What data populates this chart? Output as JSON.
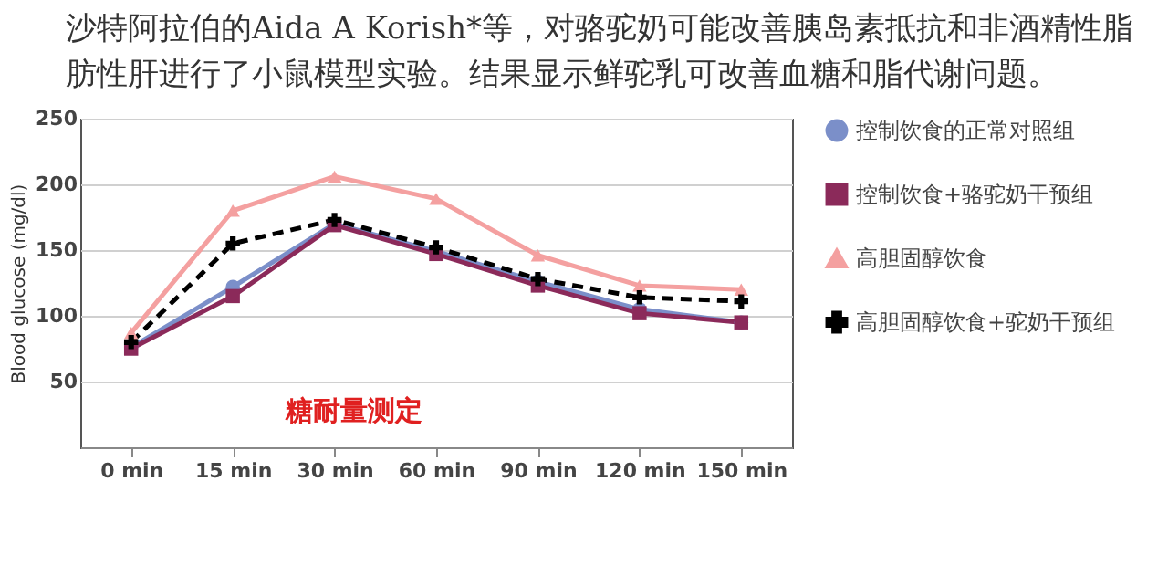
{
  "chart_data": {
    "type": "line",
    "title": "沙特阿拉伯的Aida A Korish*等，对骆驼奶可能改善胰岛素抵抗和非酒精性脂肪性肝进行了小鼠模型实验。结果显示鲜驼乳可改善血糖和脂代谢问题。",
    "ylabel": "Blood glucose (mg/dl)",
    "categories": [
      "0 min",
      "15 min",
      "30 min",
      "60 min",
      "90 min",
      "120 min",
      "150 min"
    ],
    "series": [
      {
        "name": "控制饮食的正常对照组",
        "color": "#7b8fc9",
        "marker": "circle",
        "line_style": "solid",
        "values": [
          76,
          122,
          170,
          149,
          126,
          105,
          95
        ]
      },
      {
        "name": "控制饮食+骆驼奶干预组",
        "color": "#8b2a5a",
        "marker": "square",
        "line_style": "solid",
        "values": [
          75,
          115,
          169,
          147,
          123,
          102,
          95
        ]
      },
      {
        "name": "高胆固醇饮食",
        "color": "#f4a0a0",
        "marker": "triangle",
        "line_style": "solid",
        "values": [
          87,
          180,
          206,
          189,
          146,
          123,
          120
        ]
      },
      {
        "name": "高胆固醇饮食+驼奶干预组",
        "color": "#000000",
        "marker": "cross",
        "line_style": "dashed",
        "values": [
          80,
          155,
          173,
          152,
          128,
          114,
          111
        ]
      }
    ],
    "ylim": [
      0,
      250
    ],
    "yticks": [
      50,
      100,
      150,
      200,
      250
    ],
    "grid": "y",
    "legend": "right",
    "annotations": [
      "糖耐量测定"
    ]
  }
}
